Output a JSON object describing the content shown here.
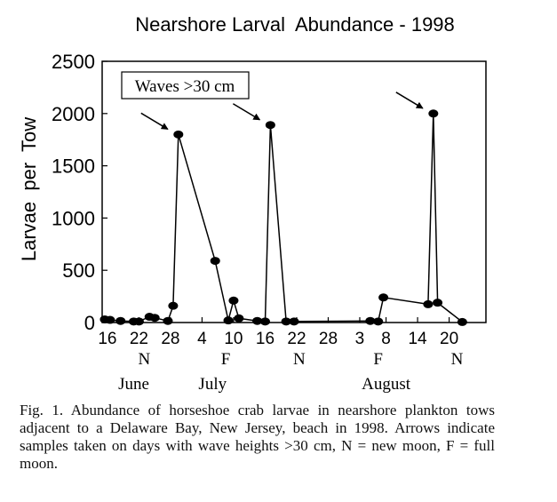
{
  "chart_data": {
    "type": "line",
    "title": "Nearshore Larval  Abundance - 1998",
    "ylabel": "Larvae  per  Tow",
    "xlabel": "",
    "ylim": [
      0,
      2500
    ],
    "xlim": [
      15,
      88
    ],
    "yticks": [
      0,
      500,
      1000,
      1500,
      2000,
      2500
    ],
    "xticks": [
      {
        "x": 16,
        "label": "16"
      },
      {
        "x": 22,
        "label": "22"
      },
      {
        "x": 28,
        "label": "28"
      },
      {
        "x": 34,
        "label": "4"
      },
      {
        "x": 40,
        "label": "10"
      },
      {
        "x": 46,
        "label": "16"
      },
      {
        "x": 52,
        "label": "22"
      },
      {
        "x": 58,
        "label": "28"
      },
      {
        "x": 64,
        "label": "3"
      },
      {
        "x": 69,
        "label": "8"
      },
      {
        "x": 75,
        "label": "14"
      },
      {
        "x": 81,
        "label": "20"
      }
    ],
    "moon_labels": [
      {
        "x": 23,
        "label": "N"
      },
      {
        "x": 38.5,
        "label": "F"
      },
      {
        "x": 52.5,
        "label": "N"
      },
      {
        "x": 67.5,
        "label": "F"
      },
      {
        "x": 82.5,
        "label": "N"
      }
    ],
    "month_labels": [
      {
        "x": 21,
        "label": "June"
      },
      {
        "x": 36,
        "label": "July"
      },
      {
        "x": 69,
        "label": "August"
      }
    ],
    "legend_box": "Waves >30 cm",
    "series": [
      {
        "points": [
          [
            15.5,
            30
          ],
          [
            16.5,
            25
          ],
          [
            18.5,
            15
          ],
          [
            21,
            10
          ],
          [
            22,
            10
          ],
          [
            24,
            55
          ],
          [
            25,
            45
          ],
          [
            27.5,
            15
          ],
          [
            28.5,
            160
          ],
          [
            29.5,
            1800
          ],
          [
            36.5,
            590
          ],
          [
            39,
            20
          ],
          [
            40,
            210
          ],
          [
            41,
            40
          ],
          [
            44.5,
            15
          ],
          [
            46,
            10
          ],
          [
            47,
            1890
          ],
          [
            50,
            10
          ],
          [
            51.5,
            10
          ],
          [
            66,
            15
          ],
          [
            67.5,
            10
          ],
          [
            68.5,
            240
          ],
          [
            77,
            175
          ],
          [
            78,
            2000
          ],
          [
            78.8,
            190
          ],
          [
            83.5,
            5
          ]
        ]
      }
    ],
    "arrows_at_x": [
      29.5,
      47,
      78
    ]
  },
  "caption": "Fig. 1.  Abundance of horseshoe crab larvae in nearshore plankton tows adjacent to a Delaware Bay, New Jersey, beach in 1998. Arrows indicate samples taken on days with wave heights >30 cm, N = new moon, F = full moon."
}
